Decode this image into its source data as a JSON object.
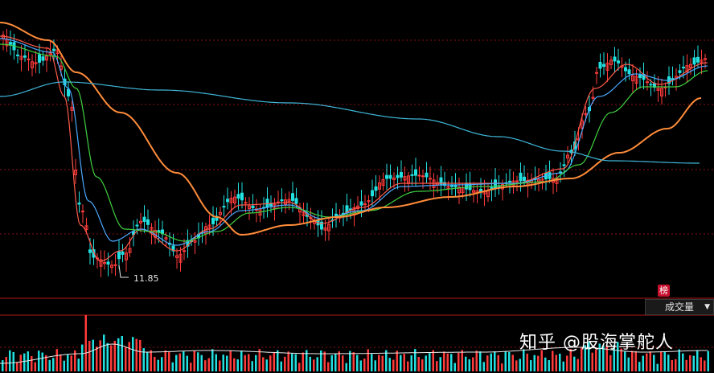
{
  "chart_data": [
    {
      "type": "candlestick",
      "annotations": {
        "low_marker": "11.85"
      },
      "colors": {
        "up": "#ff3b3b",
        "down": "#22e0e0",
        "ma_short": "#ff5a4a",
        "ma_mid": "#4aa8ff",
        "ma_long": "#40d040",
        "ma_slow": "#ff8c3a",
        "ma_base": "#3fb6d8",
        "grid": "#8b1010"
      }
    },
    {
      "type": "bar",
      "title": "成交量",
      "colors": {
        "up": "#ff3b3b",
        "down": "#22e0e0",
        "avg": "#e8e8e8"
      }
    }
  ],
  "ui": {
    "rank_badge": "榜",
    "volume_tab": "成交量",
    "dropdown_icon": "triangle-down-icon"
  },
  "watermark": "知乎 @股海掌舵人"
}
